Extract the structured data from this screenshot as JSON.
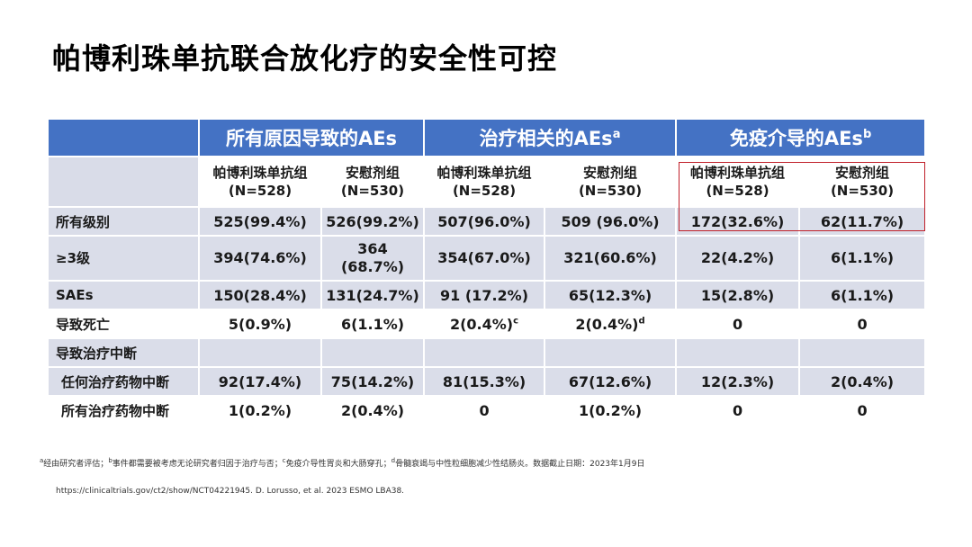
{
  "slide": {
    "title": "帕博利珠单抗联合放化疗的安全性可控"
  },
  "table": {
    "groups": [
      {
        "label": "所有原因导致的AEs",
        "sup": ""
      },
      {
        "label": "治疗相关的AEs",
        "sup": "a"
      },
      {
        "label": "免疫介导的AEs",
        "sup": "b"
      }
    ],
    "arms": [
      {
        "name": "帕博利珠单抗组",
        "n": "(N=528)"
      },
      {
        "name": "安慰剂组",
        "n": "(N=530)"
      },
      {
        "name": "帕博利珠单抗组",
        "n": "(N=528)"
      },
      {
        "name": "安慰剂组",
        "n": "(N=530)"
      },
      {
        "name": "帕博利珠单抗组",
        "n": "(N=528)"
      },
      {
        "name": "安慰剂组",
        "n": "(N=530)"
      }
    ],
    "rows": [
      {
        "label": "所有级别",
        "cells": [
          "525(99.4%)",
          "526(99.2%)",
          "507(96.0%)",
          "509 (96.0%)",
          "172(32.6%)",
          "62(11.7%)"
        ]
      },
      {
        "label": "≥3级",
        "cells": [
          "394(74.6%)",
          "364",
          "354(67.0%)",
          "321(60.6%)",
          "22(4.2%)",
          "6(1.1%)"
        ],
        "cell2_line2": "(68.7%)"
      },
      {
        "label": "SAEs",
        "cells": [
          "150(28.4%)",
          "131(24.7%)",
          "91 (17.2%)",
          "65(12.3%)",
          "15(2.8%)",
          "6(1.1%)"
        ]
      },
      {
        "label": "导致死亡",
        "cells": [
          "5(0.9%)",
          "6(1.1%)",
          "2(0.4%)",
          "2(0.4%)",
          "0",
          "0"
        ],
        "sup3": "c",
        "sup4": "d"
      },
      {
        "label": "导致治疗中断",
        "cells": [
          "",
          "",
          "",
          "",
          "",
          ""
        ]
      },
      {
        "label": "任何治疗药物中断",
        "cells": [
          "92(17.4%)",
          "75(14.2%)",
          "81(15.3%)",
          "67(12.6%)",
          "12(2.3%)",
          "2(0.4%)"
        ]
      },
      {
        "label": "所有治疗药物中断",
        "cells": [
          "1(0.2%)",
          "2(0.4%)",
          "0",
          "1(0.2%)",
          "0",
          "0"
        ]
      }
    ]
  },
  "footnote": {
    "a": "a",
    "a_text": "经由研究者评估；",
    "b": "b",
    "b_text": "事件都需要被考虑无论研究者归因于治疗与否；",
    "c": "c",
    "c_text": "免疫介导性胃炎和大肠穿孔；",
    "d": "d",
    "d_text": "骨髓衰竭与中性粒细胞减少性结肠炎。数据截止日期：2023年1月9日"
  },
  "reference": "https://clinicaltrials.gov/ct2/show/NCT04221945. D. Lorusso, et al. 2023  ESMO LBA38."
}
